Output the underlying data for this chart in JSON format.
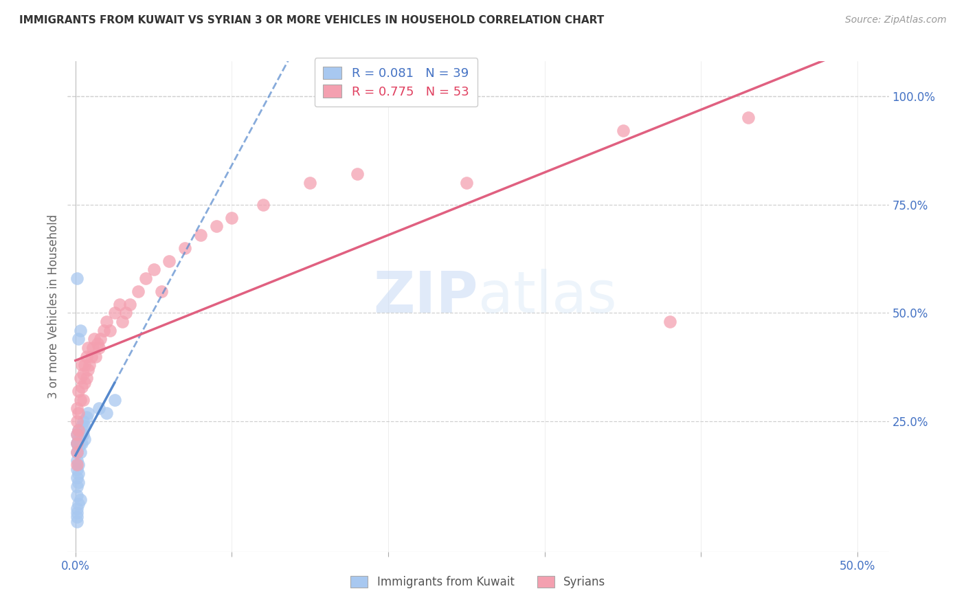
{
  "title": "IMMIGRANTS FROM KUWAIT VS SYRIAN 3 OR MORE VEHICLES IN HOUSEHOLD CORRELATION CHART",
  "source": "Source: ZipAtlas.com",
  "ylabel": "3 or more Vehicles in Household",
  "legend_label1": "Immigrants from Kuwait",
  "legend_label2": "Syrians",
  "r1": 0.081,
  "n1": 39,
  "r2": 0.775,
  "n2": 53,
  "xlim": [
    -0.005,
    0.52
  ],
  "ylim": [
    -0.05,
    1.08
  ],
  "xtick_values": [
    0.0,
    0.1,
    0.2,
    0.3,
    0.4,
    0.5
  ],
  "xtick_labels": [
    "0.0%",
    "",
    "",
    "",
    "",
    "50.0%"
  ],
  "ytick_values_right": [
    0.25,
    0.5,
    0.75,
    1.0
  ],
  "ytick_labels_right": [
    "25.0%",
    "50.0%",
    "75.0%",
    "100.0%"
  ],
  "color_blue": "#a8c8f0",
  "color_pink": "#f4a0b0",
  "color_trendline_blue": "#5588cc",
  "color_trendline_pink": "#e06080",
  "color_axis_label": "#4472c4",
  "watermark_zip": "ZIP",
  "watermark_atlas": "atlas",
  "background_color": "#ffffff",
  "grid_color": "#d0d0d0",
  "kuwait_x": [
    0.001,
    0.001,
    0.001,
    0.001,
    0.001,
    0.002,
    0.002,
    0.002,
    0.002,
    0.003,
    0.003,
    0.003,
    0.004,
    0.004,
    0.005,
    0.005,
    0.006,
    0.006,
    0.007,
    0.008,
    0.001,
    0.001,
    0.001,
    0.002,
    0.002,
    0.001,
    0.001,
    0.002,
    0.003,
    0.015,
    0.02,
    0.025,
    0.002,
    0.003,
    0.004,
    0.001,
    0.001,
    0.001,
    0.001
  ],
  "kuwait_y": [
    0.22,
    0.2,
    0.18,
    0.16,
    0.14,
    0.23,
    0.21,
    0.19,
    0.15,
    0.22,
    0.2,
    0.18,
    0.24,
    0.2,
    0.25,
    0.22,
    0.24,
    0.21,
    0.26,
    0.27,
    0.12,
    0.1,
    0.08,
    0.13,
    0.11,
    0.05,
    0.03,
    0.06,
    0.07,
    0.28,
    0.27,
    0.3,
    0.44,
    0.46,
    0.22,
    0.04,
    0.02,
    0.58,
    0.2
  ],
  "syrian_x": [
    0.001,
    0.001,
    0.001,
    0.001,
    0.001,
    0.002,
    0.002,
    0.002,
    0.003,
    0.003,
    0.004,
    0.004,
    0.005,
    0.005,
    0.006,
    0.006,
    0.007,
    0.007,
    0.008,
    0.008,
    0.009,
    0.01,
    0.011,
    0.012,
    0.013,
    0.014,
    0.015,
    0.016,
    0.018,
    0.02,
    0.022,
    0.025,
    0.028,
    0.03,
    0.032,
    0.035,
    0.04,
    0.045,
    0.05,
    0.055,
    0.06,
    0.07,
    0.08,
    0.09,
    0.1,
    0.12,
    0.15,
    0.18,
    0.25,
    0.35,
    0.38,
    0.43,
    0.001
  ],
  "syrian_y": [
    0.25,
    0.22,
    0.28,
    0.2,
    0.18,
    0.32,
    0.27,
    0.23,
    0.35,
    0.3,
    0.38,
    0.33,
    0.36,
    0.3,
    0.38,
    0.34,
    0.4,
    0.35,
    0.42,
    0.37,
    0.38,
    0.4,
    0.42,
    0.44,
    0.4,
    0.43,
    0.42,
    0.44,
    0.46,
    0.48,
    0.46,
    0.5,
    0.52,
    0.48,
    0.5,
    0.52,
    0.55,
    0.58,
    0.6,
    0.55,
    0.62,
    0.65,
    0.68,
    0.7,
    0.72,
    0.75,
    0.8,
    0.82,
    0.8,
    0.92,
    0.48,
    0.95,
    0.15
  ]
}
